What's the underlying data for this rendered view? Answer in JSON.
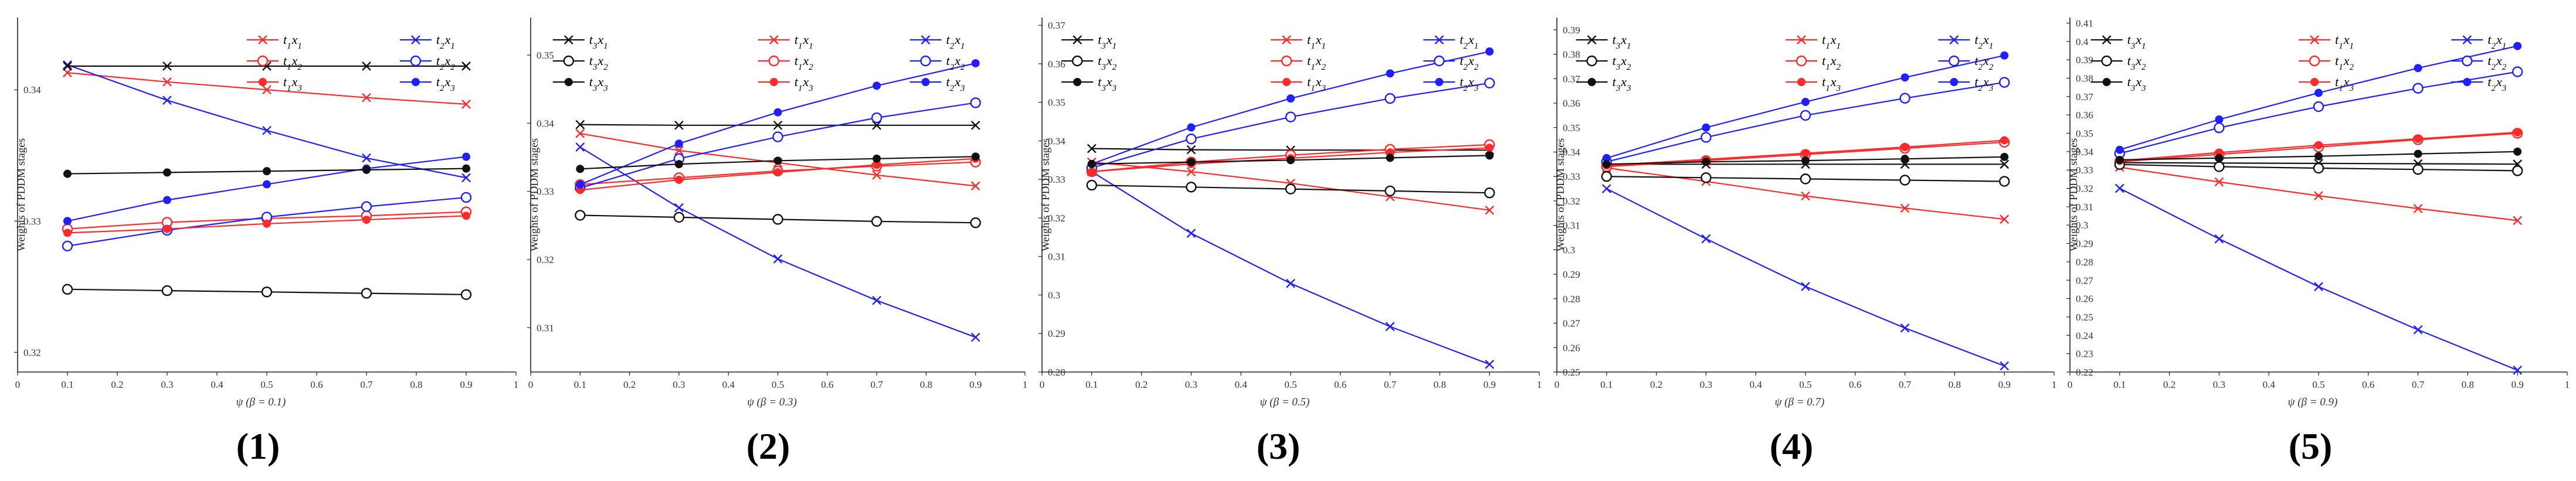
{
  "figure": {
    "panel_labels": [
      "(1)",
      "(2)",
      "(3)",
      "(4)",
      "(5)"
    ]
  },
  "legend_labels": {
    "t1x1": "t1x1",
    "t2x1": "t2x1",
    "t3x1": "t3x1",
    "t1x2": "t1x2",
    "t2x2": "t2x2",
    "t3x2": "t3x2",
    "t1x3": "t1x3",
    "t2x3": "t2x3",
    "t3x3": "t3x3"
  },
  "styles": {
    "t1x1": {
      "color": "#ff2a2a",
      "marker": "x"
    },
    "t2x1": {
      "color": "#1f1fff",
      "marker": "x"
    },
    "t3x1": {
      "color": "#111111",
      "marker": "x"
    },
    "t1x2": {
      "color": "#ff2a2a",
      "marker": "o"
    },
    "t2x2": {
      "color": "#1f1fff",
      "marker": "o"
    },
    "t3x2": {
      "color": "#111111",
      "marker": "o"
    },
    "t1x3": {
      "color": "#ff2a2a",
      "marker": "dot"
    },
    "t2x3": {
      "color": "#1f1fff",
      "marker": "dot"
    },
    "t3x3": {
      "color": "#111111",
      "marker": "dot"
    }
  },
  "chart_data": [
    {
      "type": "line",
      "ylabel": "Weights of PDDM stages",
      "xlabel": "ψ (β = 0.1)",
      "xlim": [
        0,
        1
      ],
      "xticks": [
        "0",
        "0.1",
        "0.2",
        "0.3",
        "0.4",
        "0.5",
        "0.6",
        "0.7",
        "0.8",
        "0.9",
        "1"
      ],
      "ylim": [
        0.3185,
        0.3455
      ],
      "yticks": [
        0.32,
        0.33,
        0.34
      ],
      "ytick_labels": [
        "0.32",
        "0.33",
        "0.34"
      ],
      "x": [
        0.1,
        0.3,
        0.5,
        0.7,
        0.9
      ],
      "series": [
        {
          "key": "t1x1",
          "name": "t1x1",
          "values": [
            0.3413,
            0.3406,
            0.34,
            0.3394,
            0.3389
          ]
        },
        {
          "key": "t2x1",
          "name": "t2x1",
          "values": [
            0.3419,
            0.3392,
            0.3369,
            0.3348,
            0.3333
          ]
        },
        {
          "key": "t3x1",
          "name": "t3x1",
          "values": [
            0.3418,
            0.3418,
            0.3418,
            0.3418,
            0.3418
          ]
        },
        {
          "key": "t1x2",
          "name": "t1x2",
          "values": [
            0.3294,
            0.3299,
            0.3302,
            0.3304,
            0.3307
          ]
        },
        {
          "key": "t2x2",
          "name": "t2x2",
          "values": [
            0.3281,
            0.3293,
            0.3303,
            0.3311,
            0.3318
          ]
        },
        {
          "key": "t3x2",
          "name": "t3x2",
          "values": [
            0.3248,
            0.3247,
            0.3246,
            0.3245,
            0.3244
          ]
        },
        {
          "key": "t1x3",
          "name": "t1x3",
          "values": [
            0.3291,
            0.3294,
            0.3298,
            0.3301,
            0.3304
          ]
        },
        {
          "key": "t2x3",
          "name": "t2x3",
          "values": [
            0.33,
            0.3316,
            0.3328,
            0.334,
            0.3349
          ]
        },
        {
          "key": "t3x3",
          "name": "t3x3",
          "values": [
            0.3336,
            0.3337,
            0.3338,
            0.3339,
            0.334
          ]
        }
      ]
    },
    {
      "type": "line",
      "ylabel": "Weights of PDDM stages",
      "xlabel": "ψ (β = 0.3)",
      "xlim": [
        0,
        1
      ],
      "xticks": [
        "0",
        "0.1",
        "0.2",
        "0.3",
        "0.4",
        "0.5",
        "0.6",
        "0.7",
        "0.8",
        "0.9",
        "1"
      ],
      "ylim": [
        0.3035,
        0.3555
      ],
      "yticks": [
        0.31,
        0.32,
        0.33,
        0.34,
        0.35
      ],
      "ytick_labels": [
        "0.31",
        "0.32",
        "0.33",
        "0.34",
        "0.35"
      ],
      "x": [
        0.1,
        0.3,
        0.5,
        0.7,
        0.9
      ],
      "series": [
        {
          "key": "t1x1",
          "name": "t1x1",
          "values": [
            0.3385,
            0.336,
            0.3342,
            0.3324,
            0.3308
          ]
        },
        {
          "key": "t2x1",
          "name": "t2x1",
          "values": [
            0.3365,
            0.3276,
            0.3201,
            0.314,
            0.3086
          ]
        },
        {
          "key": "t3x1",
          "name": "t3x1",
          "values": [
            0.3398,
            0.3397,
            0.3397,
            0.3397,
            0.3397
          ]
        },
        {
          "key": "t1x2",
          "name": "t1x2",
          "values": [
            0.331,
            0.332,
            0.333,
            0.3337,
            0.3343
          ]
        },
        {
          "key": "t2x2",
          "name": "t2x2",
          "values": [
            0.3305,
            0.3348,
            0.338,
            0.3408,
            0.343
          ]
        },
        {
          "key": "t3x2",
          "name": "t3x2",
          "values": [
            0.3265,
            0.3262,
            0.3259,
            0.3256,
            0.3254
          ]
        },
        {
          "key": "t1x3",
          "name": "t1x3",
          "values": [
            0.3302,
            0.3317,
            0.3328,
            0.3339,
            0.3348
          ]
        },
        {
          "key": "t2x3",
          "name": "t2x3",
          "values": [
            0.331,
            0.337,
            0.3416,
            0.3455,
            0.3488
          ]
        },
        {
          "key": "t3x3",
          "name": "t3x3",
          "values": [
            0.3333,
            0.334,
            0.3345,
            0.3348,
            0.3351
          ]
        }
      ]
    },
    {
      "type": "line",
      "ylabel": "Weights of PDDM stages",
      "xlabel": "ψ (β = 0.5)",
      "xlim": [
        0,
        1
      ],
      "xticks": [
        "0",
        "0.1",
        "0.2",
        "0.3",
        "0.4",
        "0.5",
        "0.6",
        "0.7",
        "0.8",
        "0.9",
        "1"
      ],
      "ylim": [
        0.28,
        0.372
      ],
      "yticks": [
        0.28,
        0.29,
        0.3,
        0.31,
        0.32,
        0.33,
        0.34,
        0.35,
        0.36,
        0.37
      ],
      "ytick_labels": [
        "0.28",
        "0.29",
        "0.3",
        "0.31",
        "0.32",
        "0.33",
        "0.34",
        "0.35",
        "0.36",
        "0.37"
      ],
      "x": [
        0.1,
        0.3,
        0.5,
        0.7,
        0.9
      ],
      "series": [
        {
          "key": "t1x1",
          "name": "t1x1",
          "values": [
            0.3345,
            0.332,
            0.329,
            0.3255,
            0.322
          ]
        },
        {
          "key": "t2x1",
          "name": "t2x1",
          "values": [
            0.332,
            0.316,
            0.303,
            0.2918,
            0.282
          ]
        },
        {
          "key": "t3x1",
          "name": "t3x1",
          "values": [
            0.338,
            0.3377,
            0.3376,
            0.3376,
            0.3376
          ]
        },
        {
          "key": "t1x2",
          "name": "t1x2",
          "values": [
            0.332,
            0.3345,
            0.3363,
            0.3378,
            0.339
          ]
        },
        {
          "key": "t2x2",
          "name": "t2x2",
          "values": [
            0.333,
            0.3405,
            0.3462,
            0.351,
            0.355
          ]
        },
        {
          "key": "t3x2",
          "name": "t3x2",
          "values": [
            0.3285,
            0.328,
            0.3275,
            0.327,
            0.3265
          ]
        },
        {
          "key": "t1x3",
          "name": "t1x3",
          "values": [
            0.332,
            0.334,
            0.3355,
            0.337,
            0.3382
          ]
        },
        {
          "key": "t2x3",
          "name": "t2x3",
          "values": [
            0.334,
            0.3435,
            0.351,
            0.3575,
            0.3632
          ]
        },
        {
          "key": "t3x3",
          "name": "t3x3",
          "values": [
            0.334,
            0.3345,
            0.335,
            0.3356,
            0.3362
          ]
        }
      ]
    },
    {
      "type": "line",
      "ylabel": "Weights of PDDM stages",
      "xlabel": "ψ (β = 0.7)",
      "xlim": [
        0,
        1
      ],
      "xticks": [
        "0",
        "0.1",
        "0.2",
        "0.3",
        "0.4",
        "0.5",
        "0.6",
        "0.7",
        "0.8",
        "0.9",
        "1"
      ],
      "ylim": [
        0.25,
        0.395
      ],
      "yticks": [
        0.25,
        0.26,
        0.27,
        0.28,
        0.29,
        0.3,
        0.31,
        0.32,
        0.33,
        0.34,
        0.35,
        0.36,
        0.37,
        0.38,
        0.39
      ],
      "ytick_labels": [
        "0.25",
        "0.26",
        "0.27",
        "0.28",
        "0.29",
        "0.3",
        "0.31",
        "0.32",
        "0.33",
        "0.34",
        "0.35",
        "0.36",
        "0.37",
        "0.38",
        "0.39"
      ],
      "x": [
        0.1,
        0.3,
        0.5,
        0.7,
        0.9
      ],
      "series": [
        {
          "key": "t1x1",
          "name": "t1x1",
          "values": [
            0.3335,
            0.328,
            0.322,
            0.317,
            0.3125
          ]
        },
        {
          "key": "t2x1",
          "name": "t2x1",
          "values": [
            0.325,
            0.3045,
            0.285,
            0.268,
            0.2525
          ]
        },
        {
          "key": "t3x1",
          "name": "t3x1",
          "values": [
            0.335,
            0.335,
            0.335,
            0.335,
            0.335
          ]
        },
        {
          "key": "t1x2",
          "name": "t1x2",
          "values": [
            0.334,
            0.3365,
            0.339,
            0.3415,
            0.344
          ]
        },
        {
          "key": "t2x2",
          "name": "t2x2",
          "values": [
            0.336,
            0.346,
            0.355,
            0.362,
            0.3685
          ]
        },
        {
          "key": "t3x2",
          "name": "t3x2",
          "values": [
            0.33,
            0.3295,
            0.329,
            0.3285,
            0.328
          ]
        },
        {
          "key": "t1x3",
          "name": "t1x3",
          "values": [
            0.3345,
            0.337,
            0.3395,
            0.342,
            0.3448
          ]
        },
        {
          "key": "t2x3",
          "name": "t2x3",
          "values": [
            0.3375,
            0.35,
            0.3605,
            0.3705,
            0.3795
          ]
        },
        {
          "key": "t3x3",
          "name": "t3x3",
          "values": [
            0.335,
            0.336,
            0.3365,
            0.3372,
            0.338
          ]
        }
      ]
    },
    {
      "type": "line",
      "ylabel": "Weights of PDDM stages",
      "xlabel": "ψ (β = 0.9)",
      "xlim": [
        0,
        1
      ],
      "xticks": [
        "0",
        "0.1",
        "0.2",
        "0.3",
        "0.4",
        "0.5",
        "0.6",
        "0.7",
        "0.8",
        "0.9",
        "1"
      ],
      "ylim": [
        0.22,
        0.413
      ],
      "yticks": [
        0.22,
        0.23,
        0.24,
        0.25,
        0.26,
        0.27,
        0.28,
        0.29,
        0.3,
        0.31,
        0.32,
        0.33,
        0.34,
        0.35,
        0.36,
        0.37,
        0.38,
        0.39,
        0.4,
        0.41
      ],
      "ytick_labels": [
        "0.22",
        "0.23",
        "0.24",
        "0.25",
        "0.26",
        "0.27",
        "0.28",
        "0.29",
        "0.3",
        "0.31",
        "0.32",
        "0.33",
        "0.34",
        "0.35",
        "0.36",
        "0.37",
        "0.38",
        "0.39",
        "0.4",
        "0.41"
      ],
      "x": [
        0.1,
        0.3,
        0.5,
        0.7,
        0.9
      ],
      "series": [
        {
          "key": "t1x1",
          "name": "t1x1",
          "values": [
            0.3315,
            0.3235,
            0.316,
            0.309,
            0.3025
          ]
        },
        {
          "key": "t2x1",
          "name": "t2x1",
          "values": [
            0.32,
            0.2925,
            0.2665,
            0.243,
            0.221
          ]
        },
        {
          "key": "t3x1",
          "name": "t3x1",
          "values": [
            0.334,
            0.3338,
            0.3336,
            0.3334,
            0.3332
          ]
        },
        {
          "key": "t1x2",
          "name": "t1x2",
          "values": [
            0.3345,
            0.3385,
            0.3425,
            0.3465,
            0.35
          ]
        },
        {
          "key": "t2x2",
          "name": "t2x2",
          "values": [
            0.339,
            0.353,
            0.3645,
            0.3745,
            0.3835
          ]
        },
        {
          "key": "t3x2",
          "name": "t3x2",
          "values": [
            0.333,
            0.3318,
            0.331,
            0.3303,
            0.3296
          ]
        },
        {
          "key": "t1x3",
          "name": "t1x3",
          "values": [
            0.335,
            0.3395,
            0.3435,
            0.347,
            0.3505
          ]
        },
        {
          "key": "t2x3",
          "name": "t2x3",
          "values": [
            0.341,
            0.3575,
            0.372,
            0.3855,
            0.3975
          ]
        },
        {
          "key": "t3x3",
          "name": "t3x3",
          "values": [
            0.3355,
            0.3365,
            0.3375,
            0.3388,
            0.34
          ]
        }
      ]
    }
  ]
}
